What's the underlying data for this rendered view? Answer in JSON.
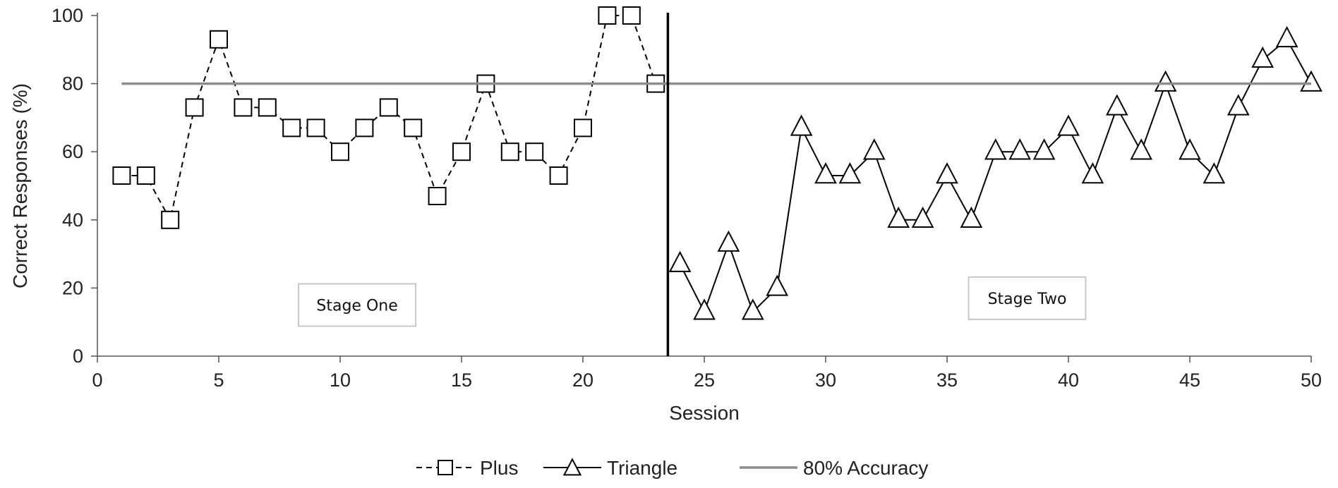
{
  "chart_data": {
    "type": "line",
    "xlabel": "Session",
    "ylabel": "Correct Responses (%)",
    "xlim": [
      0,
      50
    ],
    "ylim": [
      0,
      100
    ],
    "xticks": [
      0,
      5,
      10,
      15,
      20,
      25,
      30,
      35,
      40,
      45,
      50
    ],
    "yticks": [
      0,
      20,
      40,
      60,
      80,
      100
    ],
    "grid": false,
    "legend_position": "bottom",
    "phase_change_x": 23.5,
    "annotations": [
      {
        "text": "Stage One",
        "x": 10.7,
        "y": 15
      },
      {
        "text": "Stage Two",
        "x": 38.3,
        "y": 17
      }
    ],
    "series": [
      {
        "name": "Plus",
        "marker": "square",
        "line": "dashed",
        "color": "#000000",
        "x": [
          1,
          2,
          3,
          4,
          5,
          6,
          7,
          8,
          9,
          10,
          11,
          12,
          13,
          14,
          15,
          16,
          17,
          18,
          19,
          20,
          21,
          22,
          23
        ],
        "y": [
          53,
          53,
          40,
          73,
          93,
          73,
          73,
          67,
          67,
          60,
          67,
          73,
          67,
          47,
          60,
          80,
          60,
          60,
          53,
          67,
          100,
          100,
          80
        ]
      },
      {
        "name": "Triangle",
        "marker": "triangle",
        "line": "solid",
        "color": "#000000",
        "x": [
          24,
          25,
          26,
          27,
          28,
          29,
          30,
          31,
          32,
          33,
          34,
          35,
          36,
          37,
          38,
          39,
          40,
          41,
          42,
          43,
          44,
          45,
          46,
          47,
          48,
          49,
          50
        ],
        "y": [
          27,
          13,
          33,
          13,
          20,
          67,
          53,
          53,
          60,
          40,
          40,
          53,
          40,
          60,
          60,
          60,
          67,
          53,
          73,
          60,
          80,
          60,
          53,
          73,
          87,
          93,
          80
        ]
      },
      {
        "name": "80% Accuracy",
        "marker": "none",
        "line": "solid",
        "color": "#8c8c8c",
        "x": [
          1,
          50
        ],
        "y": [
          80,
          80
        ]
      }
    ]
  }
}
